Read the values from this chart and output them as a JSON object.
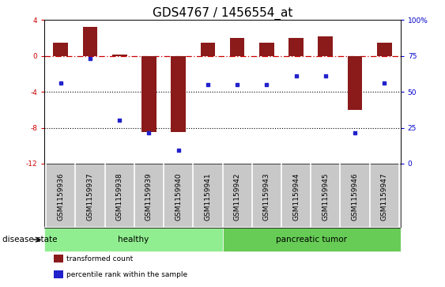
{
  "title": "GDS4767 / 1456554_at",
  "samples": [
    "GSM1159936",
    "GSM1159937",
    "GSM1159938",
    "GSM1159939",
    "GSM1159940",
    "GSM1159941",
    "GSM1159942",
    "GSM1159943",
    "GSM1159944",
    "GSM1159945",
    "GSM1159946",
    "GSM1159947"
  ],
  "bar_values": [
    1.5,
    3.2,
    0.2,
    -8.5,
    -8.5,
    1.5,
    2.0,
    1.5,
    2.0,
    2.2,
    -6.0,
    1.5
  ],
  "dot_values": [
    -3.0,
    -0.3,
    -7.2,
    -8.6,
    -10.5,
    -3.2,
    -3.2,
    -3.2,
    -2.2,
    -2.2,
    -8.6,
    -3.0
  ],
  "bar_color": "#8B1A1A",
  "dot_color": "#2222CC",
  "ylim_left": [
    -12,
    4
  ],
  "hline_y": 0,
  "dotted_lines": [
    -4,
    -8
  ],
  "left_ticks": [
    4,
    0,
    -4,
    -8,
    -12
  ],
  "right_ticks": [
    100,
    75,
    50,
    25,
    0
  ],
  "healthy_count": 6,
  "tumor_count": 6,
  "healthy_label": "healthy",
  "tumor_label": "pancreatic tumor",
  "healthy_color": "#90EE90",
  "tumor_color": "#66CC55",
  "disease_label": "disease state",
  "legend_items": [
    {
      "label": "transformed count",
      "color": "#8B1A1A"
    },
    {
      "label": "percentile rank within the sample",
      "color": "#2222CC"
    }
  ],
  "title_fontsize": 11,
  "tick_fontsize": 6.5,
  "label_fontsize": 7.5,
  "bar_width": 0.5
}
